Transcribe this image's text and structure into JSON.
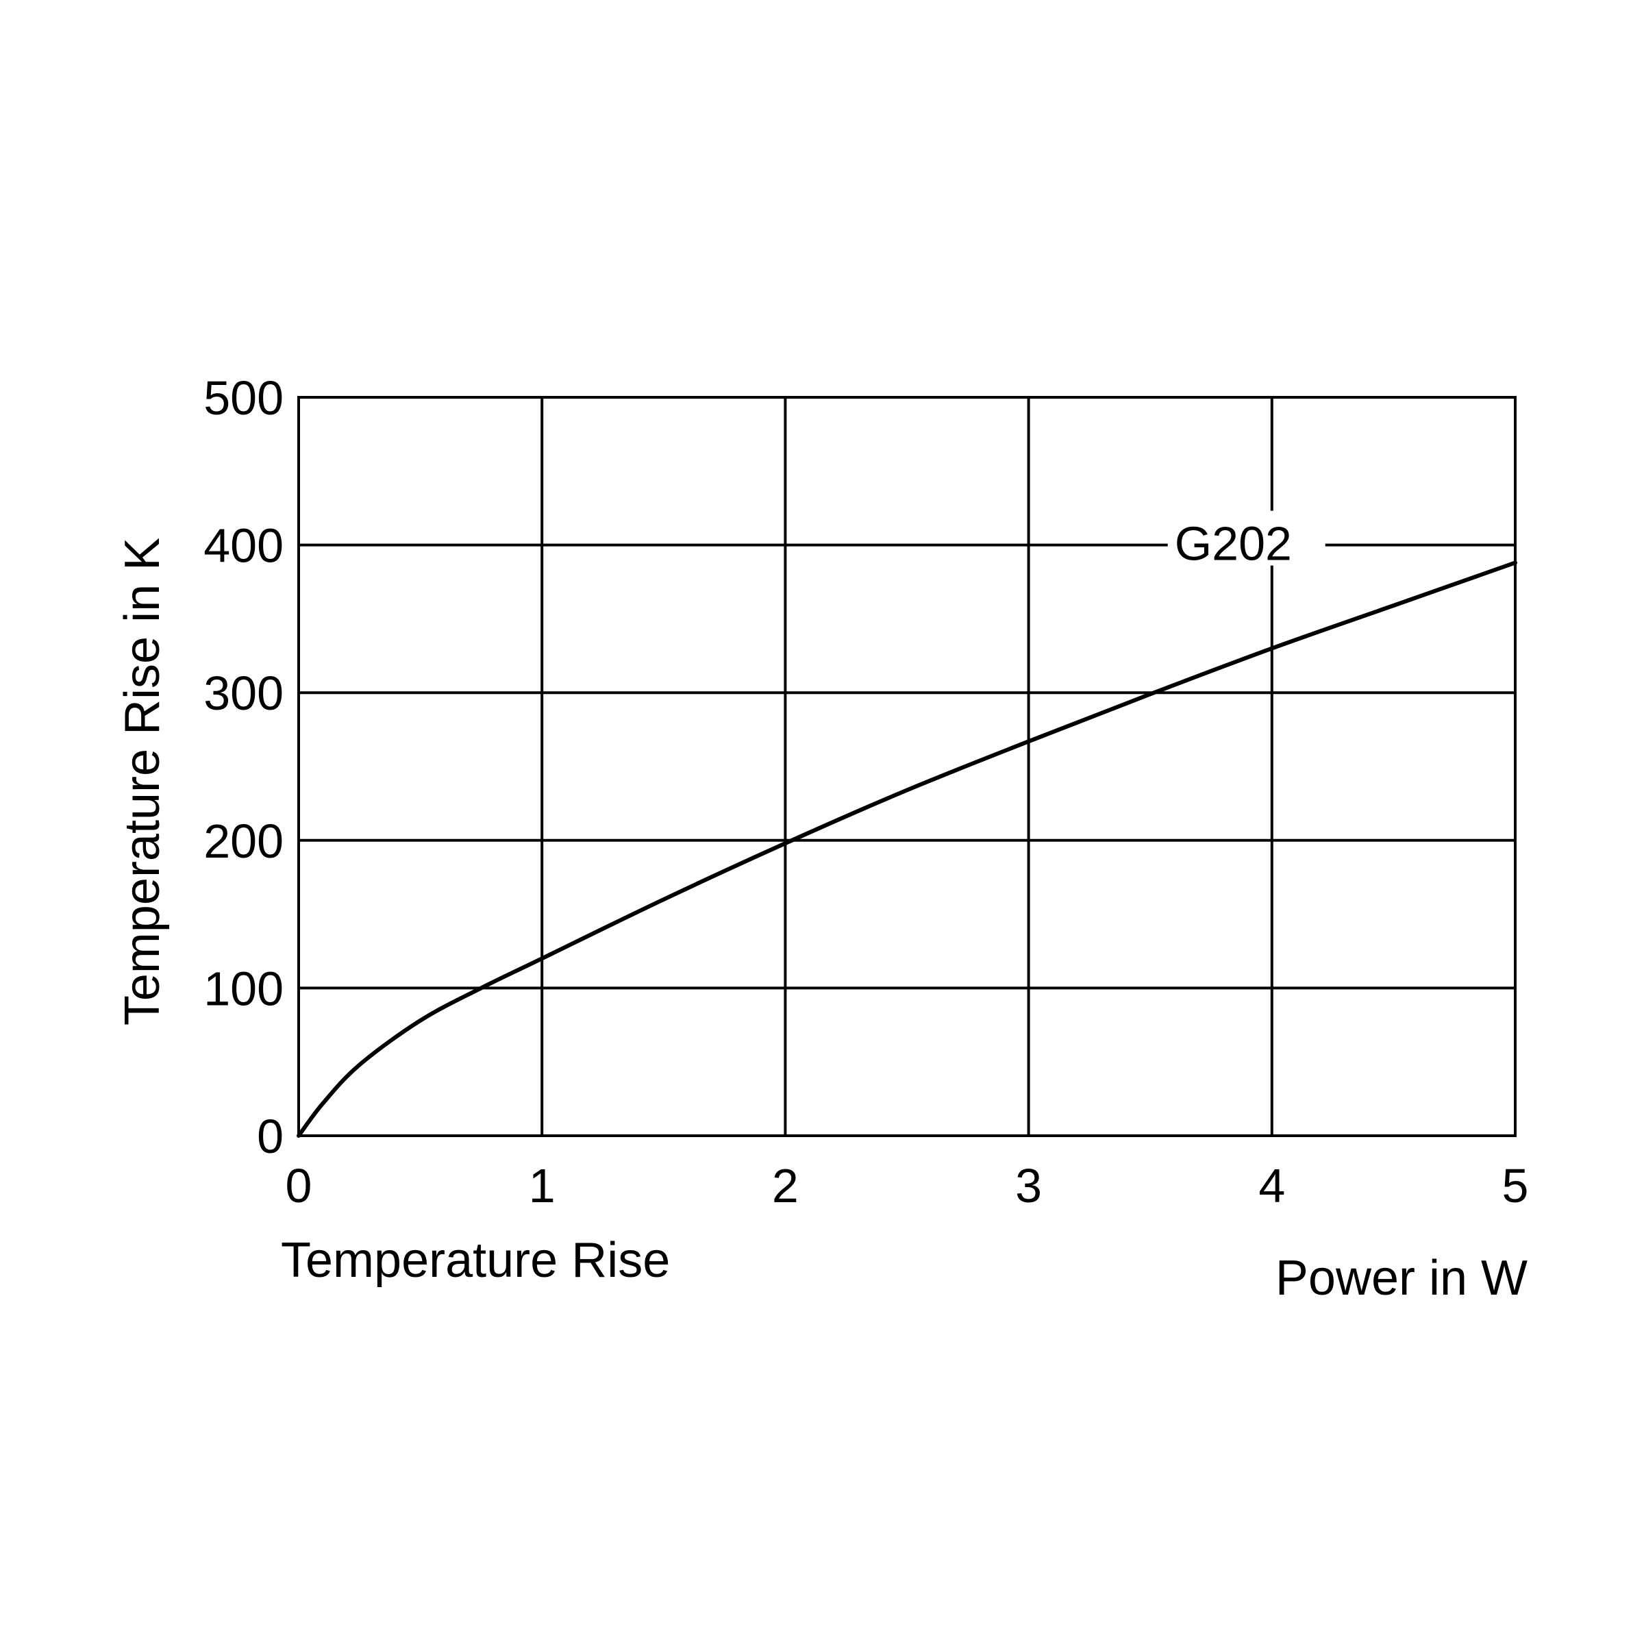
{
  "chart_data": {
    "type": "line",
    "title": "",
    "caption": "Temperature Rise",
    "xlabel": "Power in W",
    "ylabel": "Temperature Rise in K",
    "xlim": [
      0,
      5
    ],
    "ylim": [
      0,
      500
    ],
    "xticks": [
      0,
      1,
      2,
      3,
      4,
      5
    ],
    "yticks": [
      0,
      100,
      200,
      300,
      400,
      500
    ],
    "xtick_labels": [
      "0",
      "1",
      "2",
      "3",
      "4",
      "5"
    ],
    "ytick_labels": [
      "0",
      "100",
      "200",
      "300",
      "400",
      "500"
    ],
    "grid": true,
    "series": [
      {
        "name": "G202",
        "color": "#000000",
        "x": [
          0,
          0.1,
          0.25,
          0.5,
          0.75,
          1.0,
          1.5,
          2.0,
          2.5,
          3.0,
          3.5,
          4.0,
          4.5,
          5.0
        ],
        "y": [
          0,
          22,
          48,
          78,
          100,
          120,
          160,
          198,
          234,
          267,
          299,
          330,
          359,
          388
        ]
      }
    ],
    "annotations": [
      {
        "text": "G202",
        "x": 3.6,
        "y": 400
      }
    ]
  }
}
